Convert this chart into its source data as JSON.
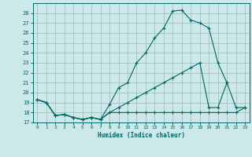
{
  "xlabel": "Humidex (Indice chaleur)",
  "bg_color": "#cce8e8",
  "line_color": "#006666",
  "grid_color": "#99bbbb",
  "xlim": [
    -0.5,
    23.5
  ],
  "ylim": [
    17,
    29
  ],
  "yticks": [
    17,
    18,
    19,
    20,
    21,
    22,
    23,
    24,
    25,
    26,
    27,
    28
  ],
  "xticks": [
    0,
    1,
    2,
    3,
    4,
    5,
    6,
    7,
    8,
    9,
    10,
    11,
    12,
    13,
    14,
    15,
    16,
    17,
    18,
    19,
    20,
    21,
    22,
    23
  ],
  "line1_x": [
    0,
    1,
    2,
    3,
    4,
    5,
    6,
    7,
    8,
    9,
    10,
    11,
    12,
    13,
    14,
    15,
    16,
    17,
    18,
    19,
    20,
    21
  ],
  "line1_y": [
    19.3,
    19.0,
    17.7,
    17.8,
    17.5,
    17.3,
    17.5,
    17.3,
    18.8,
    20.5,
    21.0,
    23.0,
    24.0,
    25.5,
    26.5,
    28.2,
    28.3,
    27.3,
    27.0,
    26.5,
    23.0,
    21.0
  ],
  "line2_x": [
    0,
    1,
    2,
    3,
    4,
    5,
    6,
    7,
    8,
    9,
    10,
    11,
    12,
    13,
    14,
    15,
    16,
    17,
    18,
    19,
    20,
    21,
    22,
    23
  ],
  "line2_y": [
    19.3,
    19.0,
    17.7,
    17.8,
    17.5,
    17.3,
    17.5,
    17.3,
    18.0,
    18.5,
    19.0,
    19.5,
    20.0,
    20.5,
    21.0,
    21.5,
    22.0,
    22.5,
    23.0,
    18.5,
    18.5,
    21.0,
    18.5,
    18.5
  ],
  "line3_x": [
    0,
    1,
    2,
    3,
    4,
    5,
    6,
    7,
    8,
    9,
    10,
    11,
    12,
    13,
    14,
    15,
    16,
    17,
    18,
    19,
    20,
    21,
    22,
    23
  ],
  "line3_y": [
    19.3,
    19.0,
    17.7,
    17.8,
    17.5,
    17.3,
    17.5,
    17.3,
    18.0,
    18.0,
    18.0,
    18.0,
    18.0,
    18.0,
    18.0,
    18.0,
    18.0,
    18.0,
    18.0,
    18.0,
    18.0,
    18.0,
    18.0,
    18.5
  ]
}
